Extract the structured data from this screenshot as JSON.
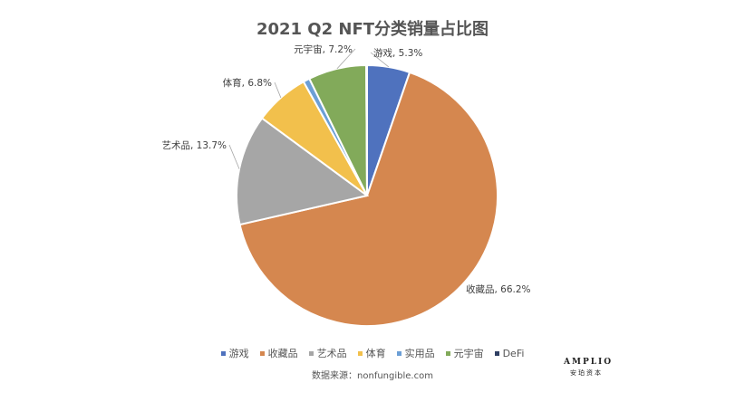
{
  "chart_data": {
    "type": "pie",
    "title": "2021 Q2 NFT分类销量占比图",
    "slices": [
      {
        "name": "游戏",
        "value": 5.3,
        "label": "游戏, 5.3%",
        "color": "#4f72be"
      },
      {
        "name": "收藏品",
        "value": 66.2,
        "label": "收藏品, 66.2%",
        "color": "#d5874f"
      },
      {
        "name": "艺术品",
        "value": 13.7,
        "label": "艺术品, 13.7%",
        "color": "#a6a6a6"
      },
      {
        "name": "体育",
        "value": 6.8,
        "label": "体育, 6.8%",
        "color": "#f2c04c"
      },
      {
        "name": "实用品",
        "value": 0.8,
        "label": "",
        "color": "#6c9fd6"
      },
      {
        "name": "元宇宙",
        "value": 7.2,
        "label": "元宇宙, 7.2%",
        "color": "#82aa5a"
      },
      {
        "name": "DeFi",
        "value": 0.1,
        "label": "",
        "color": "#2f3f63"
      }
    ],
    "legend_position": "bottom",
    "start_angle": "12 o'clock",
    "direction": "clockwise"
  },
  "legend": [
    "游戏",
    "收藏品",
    "艺术品",
    "体育",
    "实用品",
    "元宇宙",
    "DeFi"
  ],
  "source": "数据来源：nonfungible.com",
  "brand": {
    "name": "AMPLIO",
    "sub": "安珀资本"
  }
}
